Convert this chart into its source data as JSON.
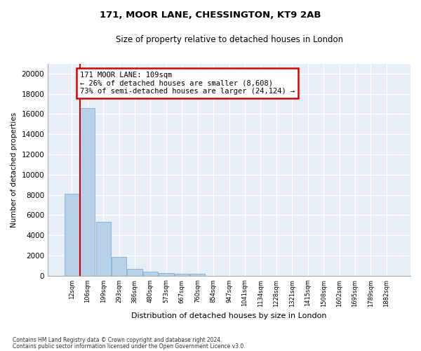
{
  "title1": "171, MOOR LANE, CHESSINGTON, KT9 2AB",
  "title2": "Size of property relative to detached houses in London",
  "xlabel": "Distribution of detached houses by size in London",
  "ylabel": "Number of detached properties",
  "bar_color": "#b8d0e8",
  "bar_edge_color": "#7aafd4",
  "background_color": "#e8eef8",
  "bins": [
    "12sqm",
    "106sqm",
    "199sqm",
    "293sqm",
    "386sqm",
    "480sqm",
    "573sqm",
    "667sqm",
    "760sqm",
    "854sqm",
    "947sqm",
    "1041sqm",
    "1134sqm",
    "1228sqm",
    "1321sqm",
    "1415sqm",
    "1508sqm",
    "1602sqm",
    "1695sqm",
    "1789sqm",
    "1882sqm"
  ],
  "bar_heights": [
    8100,
    16600,
    5300,
    1850,
    700,
    380,
    280,
    200,
    200,
    0,
    0,
    0,
    0,
    0,
    0,
    0,
    0,
    0,
    0,
    0,
    0
  ],
  "ylim": [
    0,
    21000
  ],
  "yticks": [
    0,
    2000,
    4000,
    6000,
    8000,
    10000,
    12000,
    14000,
    16000,
    18000,
    20000
  ],
  "annotation_text": "171 MOOR LANE: 109sqm\n← 26% of detached houses are smaller (8,608)\n73% of semi-detached houses are larger (24,124) →",
  "annotation_box_color": "#ffffff",
  "annotation_border_color": "#cc0000",
  "red_line_color": "#cc0000",
  "footnote1": "Contains HM Land Registry data © Crown copyright and database right 2024.",
  "footnote2": "Contains public sector information licensed under the Open Government Licence v3.0."
}
